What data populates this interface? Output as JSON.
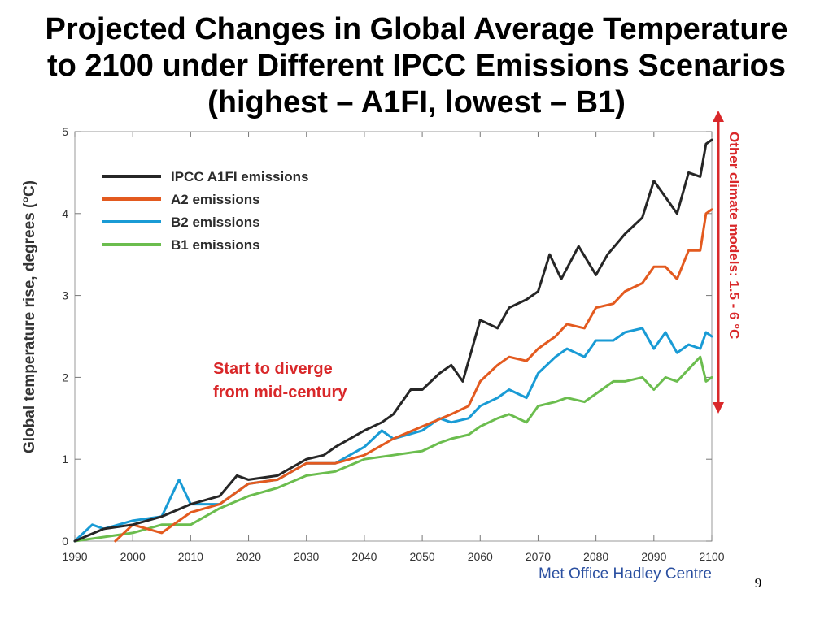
{
  "slide": {
    "title_lines": [
      "Projected Changes in Global Average Temperature",
      "to 2100 under Different IPCC Emissions Scenarios",
      "(highest – A1FI, lowest – B1)"
    ],
    "page_number": "9"
  },
  "chart_data": {
    "type": "line",
    "xlabel": "",
    "ylabel": "Global temperature rise, degrees (°C)",
    "xlim": [
      1990,
      2100
    ],
    "ylim": [
      0,
      5
    ],
    "xticks": [
      1990,
      2000,
      2010,
      2020,
      2030,
      2040,
      2050,
      2060,
      2070,
      2080,
      2090,
      2100
    ],
    "yticks": [
      0,
      1,
      2,
      3,
      4,
      5
    ],
    "grid": false,
    "legend_position": "top-left",
    "series": [
      {
        "name": "IPCC A1FI emissions",
        "color": "#262626",
        "points": [
          [
            1990,
            0.0
          ],
          [
            1995,
            0.15
          ],
          [
            2000,
            0.2
          ],
          [
            2005,
            0.3
          ],
          [
            2010,
            0.45
          ],
          [
            2015,
            0.55
          ],
          [
            2018,
            0.8
          ],
          [
            2020,
            0.75
          ],
          [
            2025,
            0.8
          ],
          [
            2030,
            1.0
          ],
          [
            2033,
            1.05
          ],
          [
            2035,
            1.15
          ],
          [
            2040,
            1.35
          ],
          [
            2043,
            1.45
          ],
          [
            2045,
            1.55
          ],
          [
            2048,
            1.85
          ],
          [
            2050,
            1.85
          ],
          [
            2053,
            2.05
          ],
          [
            2055,
            2.15
          ],
          [
            2057,
            1.95
          ],
          [
            2060,
            2.7
          ],
          [
            2063,
            2.6
          ],
          [
            2065,
            2.85
          ],
          [
            2068,
            2.95
          ],
          [
            2070,
            3.05
          ],
          [
            2072,
            3.5
          ],
          [
            2074,
            3.2
          ],
          [
            2077,
            3.6
          ],
          [
            2080,
            3.25
          ],
          [
            2082,
            3.5
          ],
          [
            2085,
            3.75
          ],
          [
            2088,
            3.95
          ],
          [
            2090,
            4.4
          ],
          [
            2092,
            4.2
          ],
          [
            2094,
            4.0
          ],
          [
            2096,
            4.5
          ],
          [
            2098,
            4.45
          ],
          [
            2099,
            4.85
          ],
          [
            2100,
            4.9
          ]
        ]
      },
      {
        "name": "A2 emissions",
        "color": "#e35a1f",
        "points": [
          [
            1997,
            0.0
          ],
          [
            2000,
            0.2
          ],
          [
            2005,
            0.1
          ],
          [
            2010,
            0.35
          ],
          [
            2015,
            0.45
          ],
          [
            2020,
            0.7
          ],
          [
            2025,
            0.75
          ],
          [
            2030,
            0.95
          ],
          [
            2035,
            0.95
          ],
          [
            2040,
            1.05
          ],
          [
            2045,
            1.25
          ],
          [
            2050,
            1.4
          ],
          [
            2055,
            1.55
          ],
          [
            2058,
            1.65
          ],
          [
            2060,
            1.95
          ],
          [
            2063,
            2.15
          ],
          [
            2065,
            2.25
          ],
          [
            2068,
            2.2
          ],
          [
            2070,
            2.35
          ],
          [
            2073,
            2.5
          ],
          [
            2075,
            2.65
          ],
          [
            2078,
            2.6
          ],
          [
            2080,
            2.85
          ],
          [
            2083,
            2.9
          ],
          [
            2085,
            3.05
          ],
          [
            2088,
            3.15
          ],
          [
            2090,
            3.35
          ],
          [
            2092,
            3.35
          ],
          [
            2094,
            3.2
          ],
          [
            2096,
            3.55
          ],
          [
            2098,
            3.55
          ],
          [
            2099,
            4.0
          ],
          [
            2100,
            4.05
          ]
        ]
      },
      {
        "name": "B2 emissions",
        "color": "#199bd5",
        "points": [
          [
            1990,
            0.0
          ],
          [
            1993,
            0.2
          ],
          [
            1995,
            0.15
          ],
          [
            2000,
            0.25
          ],
          [
            2005,
            0.3
          ],
          [
            2008,
            0.75
          ],
          [
            2010,
            0.45
          ],
          [
            2015,
            0.45
          ],
          [
            2020,
            0.7
          ],
          [
            2025,
            0.75
          ],
          [
            2030,
            0.95
          ],
          [
            2035,
            0.95
          ],
          [
            2040,
            1.15
          ],
          [
            2043,
            1.35
          ],
          [
            2045,
            1.25
          ],
          [
            2050,
            1.35
          ],
          [
            2053,
            1.5
          ],
          [
            2055,
            1.45
          ],
          [
            2058,
            1.5
          ],
          [
            2060,
            1.65
          ],
          [
            2063,
            1.75
          ],
          [
            2065,
            1.85
          ],
          [
            2068,
            1.75
          ],
          [
            2070,
            2.05
          ],
          [
            2073,
            2.25
          ],
          [
            2075,
            2.35
          ],
          [
            2078,
            2.25
          ],
          [
            2080,
            2.45
          ],
          [
            2083,
            2.45
          ],
          [
            2085,
            2.55
          ],
          [
            2088,
            2.6
          ],
          [
            2090,
            2.35
          ],
          [
            2092,
            2.55
          ],
          [
            2094,
            2.3
          ],
          [
            2096,
            2.4
          ],
          [
            2098,
            2.35
          ],
          [
            2099,
            2.55
          ],
          [
            2100,
            2.5
          ]
        ]
      },
      {
        "name": "B1 emissions",
        "color": "#6bbd4e",
        "points": [
          [
            1990,
            0.0
          ],
          [
            1995,
            0.05
          ],
          [
            2000,
            0.1
          ],
          [
            2005,
            0.2
          ],
          [
            2010,
            0.2
          ],
          [
            2015,
            0.4
          ],
          [
            2020,
            0.55
          ],
          [
            2025,
            0.65
          ],
          [
            2030,
            0.8
          ],
          [
            2035,
            0.85
          ],
          [
            2040,
            1.0
          ],
          [
            2045,
            1.05
          ],
          [
            2050,
            1.1
          ],
          [
            2053,
            1.2
          ],
          [
            2055,
            1.25
          ],
          [
            2058,
            1.3
          ],
          [
            2060,
            1.4
          ],
          [
            2063,
            1.5
          ],
          [
            2065,
            1.55
          ],
          [
            2068,
            1.45
          ],
          [
            2070,
            1.65
          ],
          [
            2073,
            1.7
          ],
          [
            2075,
            1.75
          ],
          [
            2078,
            1.7
          ],
          [
            2080,
            1.8
          ],
          [
            2083,
            1.95
          ],
          [
            2085,
            1.95
          ],
          [
            2088,
            2.0
          ],
          [
            2090,
            1.85
          ],
          [
            2092,
            2.0
          ],
          [
            2094,
            1.95
          ],
          [
            2096,
            2.1
          ],
          [
            2098,
            2.25
          ],
          [
            2099,
            1.95
          ],
          [
            2100,
            2.0
          ]
        ]
      }
    ],
    "annotations": {
      "diverge_lines": [
        "Start to diverge",
        "from mid-century"
      ],
      "diverge_color": "#d9282a",
      "range_label": "Other climate models: 1.5 - 6 °C",
      "range_color": "#d9282a",
      "credit": "Met Office Hadley Centre",
      "credit_color": "#2a4fa0"
    }
  }
}
